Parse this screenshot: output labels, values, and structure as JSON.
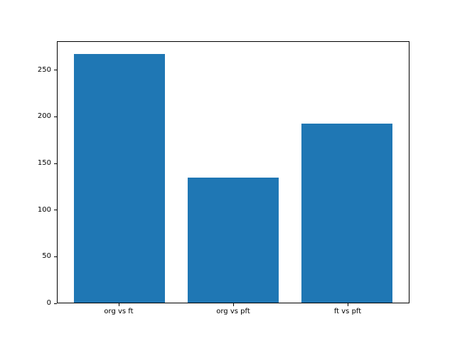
{
  "chart_data": {
    "type": "bar",
    "categories": [
      "org vs ft",
      "org vs pft",
      "ft vs pft"
    ],
    "values": [
      268,
      135,
      193
    ],
    "title": "",
    "xlabel": "",
    "ylabel": "",
    "ylim": [
      0,
      281
    ],
    "yticks": [
      0,
      50,
      100,
      150,
      200,
      250
    ],
    "bar_color": "#1f77b4",
    "grid": false,
    "legend_position": "none"
  }
}
